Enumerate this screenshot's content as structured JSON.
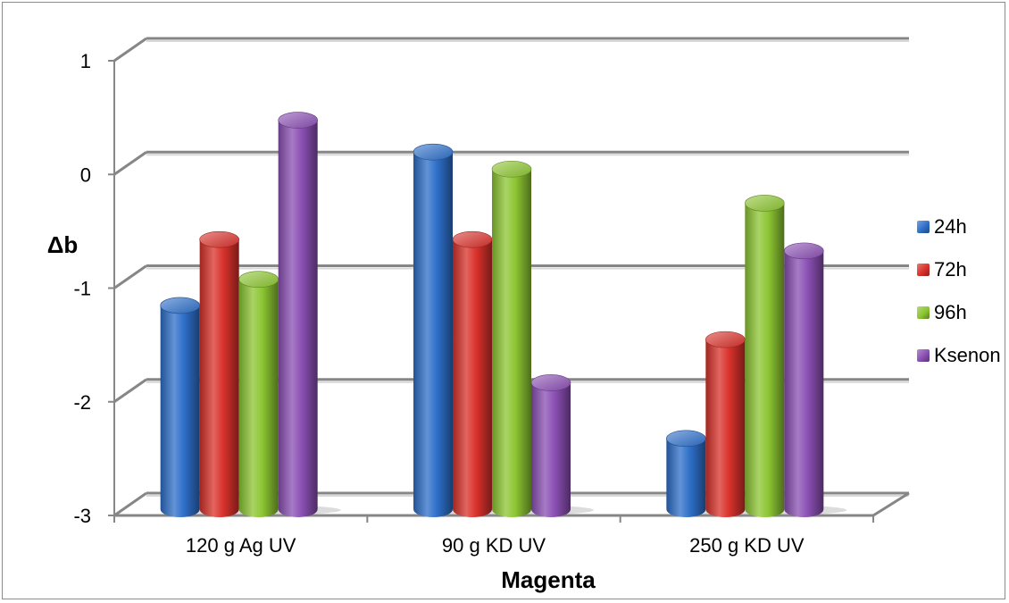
{
  "chart_data": {
    "type": "bar",
    "title": "",
    "xlabel": "Magenta",
    "ylabel": "Δb",
    "categories": [
      "120 g Ag UV",
      "90 g KD UV",
      "250 g KD UV"
    ],
    "ylim": [
      -3,
      1
    ],
    "yticks": [
      "1",
      "0",
      "-1",
      "-2",
      "-3"
    ],
    "grid": true,
    "legend_position": "right",
    "style": "3d-cylinder",
    "series": [
      {
        "name": "24h",
        "color": "#2e6fc9",
        "values": [
          -1.2,
          0.15,
          -2.37
        ]
      },
      {
        "name": "72h",
        "color": "#d9312b",
        "values": [
          -0.62,
          -0.62,
          -1.5
        ]
      },
      {
        "name": "96h",
        "color": "#8cc532",
        "values": [
          -0.97,
          0.0,
          -0.3
        ]
      },
      {
        "name": "Ksenon",
        "color": "#8a4fb3",
        "values": [
          0.43,
          -1.88,
          -0.72
        ]
      }
    ]
  }
}
